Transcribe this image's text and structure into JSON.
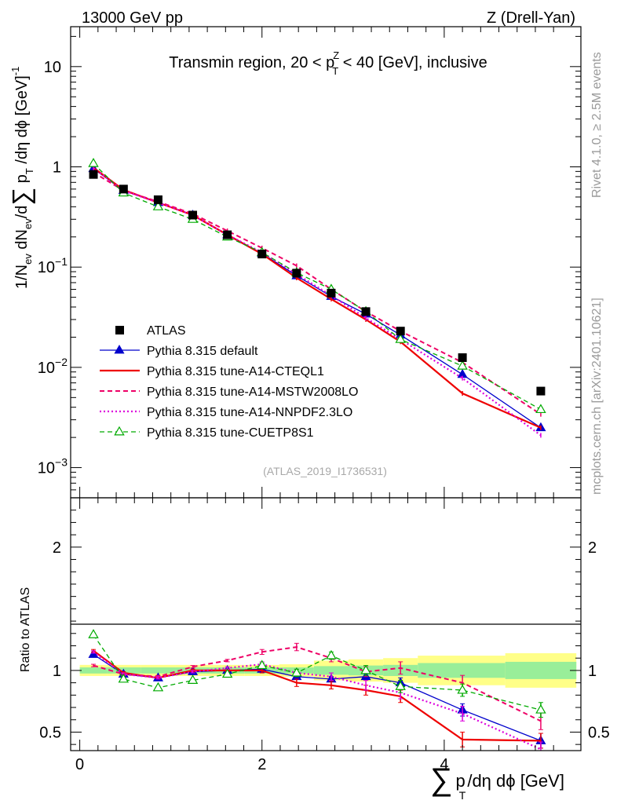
{
  "header": {
    "left": "13000 GeV pp",
    "right": "Z (Drell-Yan)"
  },
  "side_labels": {
    "rivet": "Rivet 4.1.0, ≥ 2.5M events",
    "mcplots": "mcplots.cern.ch [arXiv:2401.10621]"
  },
  "chart_data": [
    {
      "type": "line",
      "panel": "main",
      "title": "Transmin region, 20 < p_T^Z < 40 [GeV], inclusive",
      "title_parts": {
        "a": "Transmin region, 20 < p",
        "sub": "T",
        "sup": "Z",
        "b": " < 40 [GeV], inclusive"
      },
      "analysis_id": "(ATLAS_2019_I1736531)",
      "ylabel": "1/N_ev dN_ev/d∑p_T/dη dϕ [GeV]^-1",
      "y_scale": "log",
      "ylim": [
        0.0005,
        25
      ],
      "xlim": [
        -0.1,
        5.5
      ],
      "y_ticks": [
        {
          "v": 0.001,
          "base": "10",
          "exp": "−3"
        },
        {
          "v": 0.01,
          "base": "10",
          "exp": "−2"
        },
        {
          "v": 0.1,
          "base": "10",
          "exp": "−1"
        },
        {
          "v": 1,
          "base": "1",
          "exp": ""
        },
        {
          "v": 10,
          "base": "10",
          "exp": ""
        }
      ],
      "x": [
        0.15,
        0.48,
        0.86,
        1.24,
        1.62,
        2.0,
        2.38,
        2.76,
        3.14,
        3.52,
        4.2,
        5.06
      ],
      "atlas": [
        0.84,
        0.6,
        0.47,
        0.33,
        0.21,
        0.135,
        0.087,
        0.055,
        0.036,
        0.023,
        0.0125,
        0.0058
      ],
      "series": [
        {
          "name": "Pythia 8.315 default",
          "key": "default",
          "color": "#0000cc",
          "dash": "",
          "width": 1.3,
          "marker": "triangle-filled",
          "values": [
            0.96,
            0.58,
            0.44,
            0.33,
            0.21,
            0.137,
            0.082,
            0.051,
            0.034,
            0.021,
            0.0085,
            0.0025
          ]
        },
        {
          "name": "Pythia 8.315 tune-A14-CTEQL1",
          "key": "cteql1",
          "color": "#ee0000",
          "dash": "",
          "width": 2.2,
          "marker": "none",
          "values": [
            0.98,
            0.59,
            0.44,
            0.33,
            0.21,
            0.135,
            0.078,
            0.048,
            0.03,
            0.018,
            0.0055,
            0.0025
          ]
        },
        {
          "name": "Pythia 8.315 tune-A14-MSTW2008LO",
          "key": "mstw",
          "color": "#ee0066",
          "dash": "6,4",
          "width": 2.0,
          "marker": "none",
          "values": [
            0.88,
            0.58,
            0.45,
            0.34,
            0.23,
            0.155,
            0.103,
            0.06,
            0.036,
            0.023,
            0.0112,
            0.0034
          ]
        },
        {
          "name": "Pythia 8.315 tune-A14-NNPDF2.3LO",
          "key": "nnpdf",
          "color": "#dd00dd",
          "dash": "2,3",
          "width": 2.2,
          "marker": "none",
          "values": [
            0.97,
            0.58,
            0.44,
            0.33,
            0.21,
            0.14,
            0.085,
            0.052,
            0.031,
            0.019,
            0.0078,
            0.0021
          ]
        },
        {
          "name": "Pythia 8.315 tune-CUETP8S1",
          "key": "cuetp",
          "color": "#00aa00",
          "dash": "6,4",
          "width": 1.3,
          "marker": "triangle-open",
          "values": [
            1.08,
            0.55,
            0.4,
            0.3,
            0.2,
            0.14,
            0.088,
            0.06,
            0.036,
            0.019,
            0.0103,
            0.0038
          ]
        }
      ]
    },
    {
      "type": "line",
      "panel": "ratio",
      "ylabel": "Ratio to ATLAS",
      "xlabel": "∑p_T/dη dϕ [GeV]",
      "xlabel_parts": {
        "sum": "∑",
        "p": "p",
        "sub": "T",
        "rest": "/dη dϕ [GeV]"
      },
      "ylim": [
        0.35,
        2.4
      ],
      "xlim": [
        -0.1,
        5.5
      ],
      "y_ticks": [
        0.5,
        1,
        2
      ],
      "y_tick_labels": [
        "0.5",
        "1",
        "2"
      ],
      "x_ticks": [
        0,
        2,
        4
      ],
      "x_tick_labels": [
        "0",
        "2",
        "4"
      ],
      "x": [
        0.15,
        0.48,
        0.86,
        1.24,
        1.62,
        2.0,
        2.38,
        2.76,
        3.14,
        3.52,
        4.2,
        5.06
      ],
      "band_edges": [
        0.0,
        0.3,
        0.67,
        1.05,
        1.43,
        1.81,
        2.19,
        2.57,
        2.95,
        3.33,
        3.71,
        4.67,
        5.45
      ],
      "band_inner": [
        0.025,
        0.025,
        0.025,
        0.025,
        0.025,
        0.025,
        0.025,
        0.035,
        0.04,
        0.045,
        0.06,
        0.07
      ],
      "band_outer": [
        0.045,
        0.045,
        0.045,
        0.045,
        0.045,
        0.045,
        0.05,
        0.08,
        0.09,
        0.1,
        0.12,
        0.14
      ],
      "series": [
        {
          "name": "Pythia 8.315 default",
          "key": "default",
          "values": [
            1.13,
            0.97,
            0.94,
            0.99,
            1.0,
            1.01,
            0.95,
            0.93,
            0.95,
            0.9,
            0.68,
            0.43
          ],
          "errors": [
            0.01,
            0.01,
            0.01,
            0.01,
            0.01,
            0.01,
            0.02,
            0.02,
            0.03,
            0.04,
            0.05,
            0.06
          ]
        },
        {
          "name": "Pythia 8.315 tune-A14-CTEQL1",
          "key": "cteql1",
          "values": [
            1.16,
            0.98,
            0.94,
            1.0,
            1.0,
            1.0,
            0.9,
            0.88,
            0.84,
            0.79,
            0.44,
            0.43
          ],
          "errors": [
            0.01,
            0.01,
            0.01,
            0.01,
            0.01,
            0.02,
            0.03,
            0.03,
            0.04,
            0.05,
            0.06,
            0.06
          ]
        },
        {
          "name": "Pythia 8.315 tune-A14-MSTW2008LO",
          "key": "mstw",
          "values": [
            1.04,
            0.97,
            0.95,
            1.03,
            1.08,
            1.15,
            1.19,
            1.1,
            0.99,
            1.02,
            0.9,
            0.59
          ],
          "errors": [
            0.01,
            0.01,
            0.01,
            0.01,
            0.01,
            0.02,
            0.03,
            0.03,
            0.04,
            0.05,
            0.06,
            0.07
          ]
        },
        {
          "name": "Pythia 8.315 tune-A14-NNPDF2.3LO",
          "key": "nnpdf",
          "values": [
            1.15,
            0.97,
            0.94,
            0.99,
            1.02,
            1.05,
            0.98,
            0.95,
            0.88,
            0.82,
            0.65,
            0.36
          ],
          "errors": [
            0.01,
            0.01,
            0.01,
            0.01,
            0.01,
            0.02,
            0.03,
            0.03,
            0.04,
            0.05,
            0.06,
            0.06
          ]
        },
        {
          "name": "Pythia 8.315 tune-CUETP8S1",
          "key": "cuetp",
          "values": [
            1.29,
            0.93,
            0.86,
            0.92,
            0.97,
            1.04,
            0.98,
            1.12,
            1.0,
            0.87,
            0.84,
            0.68
          ],
          "errors": [
            0.01,
            0.01,
            0.01,
            0.01,
            0.01,
            0.02,
            0.03,
            0.03,
            0.04,
            0.05,
            0.05,
            0.06
          ]
        }
      ]
    }
  ]
}
